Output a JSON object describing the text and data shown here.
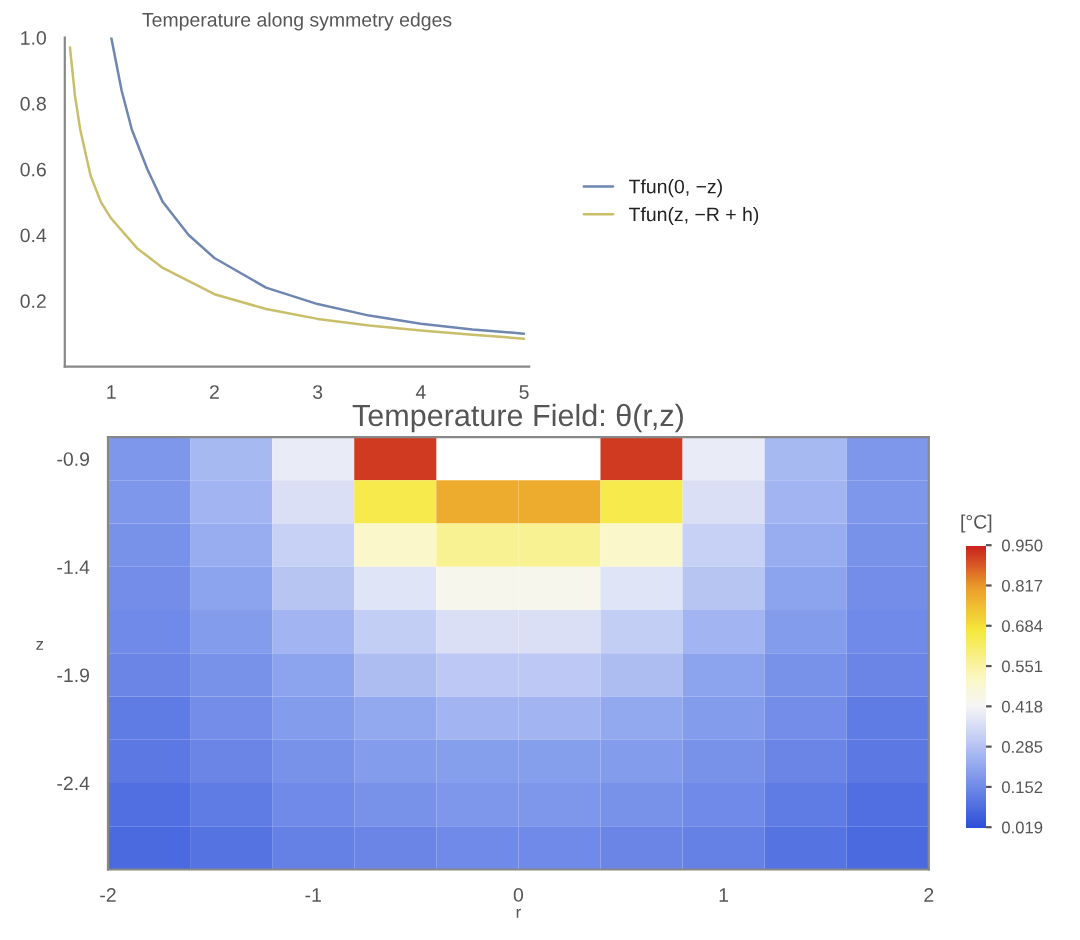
{
  "chart_data": [
    {
      "type": "line",
      "title": "Temperature along symmetry edges",
      "series": [
        {
          "name": "Tfun(0, −z)",
          "color": "#6f86b0",
          "x": [
            1.0,
            1.1,
            1.2,
            1.35,
            1.5,
            1.75,
            2.0,
            2.5,
            3.0,
            3.5,
            4.0,
            4.5,
            5.0
          ],
          "values": [
            1.0,
            0.84,
            0.72,
            0.6,
            0.5,
            0.4,
            0.33,
            0.24,
            0.19,
            0.155,
            0.13,
            0.113,
            0.1
          ]
        },
        {
          "name": "Tfun(z, −R + h)",
          "color": "#c9bf6a",
          "x": [
            0.6,
            0.65,
            0.7,
            0.8,
            0.9,
            1.0,
            1.25,
            1.5,
            2.0,
            2.5,
            3.0,
            3.5,
            4.0,
            4.5,
            5.0
          ],
          "values": [
            0.97,
            0.82,
            0.72,
            0.58,
            0.5,
            0.45,
            0.36,
            0.3,
            0.22,
            0.175,
            0.145,
            0.125,
            0.11,
            0.097,
            0.085
          ]
        }
      ],
      "xlim": [
        0.55,
        5.05
      ],
      "ylim": [
        0,
        1.0
      ],
      "xticks": [
        1,
        2,
        3,
        4,
        5
      ],
      "yticks": [
        0.2,
        0.4,
        0.6,
        0.8,
        {
          "value": 1.0,
          "label": "1.0"
        }
      ],
      "grid": false,
      "legend": "right"
    },
    {
      "type": "heatmap",
      "title": "Temperature Field: θ(r,z)",
      "xlabel": "r",
      "ylabel": "z",
      "clabel": "[°C]",
      "x": [
        -1.8,
        -1.4,
        -1.0,
        -0.6,
        -0.2,
        0.2,
        0.6,
        1.0,
        1.4,
        1.8
      ],
      "y": [
        -0.9,
        -1.1,
        -1.3,
        -1.5,
        -1.7,
        -1.9,
        -2.1,
        -2.3,
        -2.5,
        -2.7
      ],
      "cells": [
        [
          0.18,
          0.26,
          0.39,
          0.92,
          null,
          null,
          0.92,
          0.39,
          0.26,
          0.18
        ],
        [
          0.18,
          0.25,
          0.36,
          0.65,
          0.78,
          0.78,
          0.65,
          0.36,
          0.25,
          0.18
        ],
        [
          0.17,
          0.23,
          0.32,
          0.5,
          0.57,
          0.57,
          0.5,
          0.32,
          0.23,
          0.17
        ],
        [
          0.16,
          0.21,
          0.29,
          0.37,
          0.44,
          0.44,
          0.37,
          0.29,
          0.21,
          0.16
        ],
        [
          0.15,
          0.19,
          0.25,
          0.31,
          0.36,
          0.36,
          0.31,
          0.25,
          0.19,
          0.15
        ],
        [
          0.14,
          0.17,
          0.21,
          0.27,
          0.3,
          0.3,
          0.27,
          0.21,
          0.17,
          0.14
        ],
        [
          0.12,
          0.16,
          0.19,
          0.22,
          0.25,
          0.25,
          0.22,
          0.19,
          0.16,
          0.12
        ],
        [
          0.11,
          0.14,
          0.17,
          0.19,
          0.2,
          0.2,
          0.19,
          0.17,
          0.14,
          0.11
        ],
        [
          0.09,
          0.12,
          0.15,
          0.17,
          0.18,
          0.18,
          0.17,
          0.15,
          0.12,
          0.09
        ],
        [
          0.08,
          0.1,
          0.13,
          0.14,
          0.15,
          0.15,
          0.14,
          0.13,
          0.1,
          0.08
        ]
      ],
      "xlim": [
        -2,
        2
      ],
      "ylim": [
        -2.8,
        -0.8
      ],
      "xticks": [
        -2,
        -1,
        0,
        1,
        2
      ],
      "yticks": [
        -0.9,
        -1.4,
        -1.9,
        -2.4
      ],
      "clim": [
        0.019,
        0.95
      ],
      "cticks": [
        {
          "value": 0.019,
          "label": "0.019"
        },
        {
          "value": 0.152,
          "label": "0.152"
        },
        {
          "value": 0.285,
          "label": "0.285"
        },
        {
          "value": 0.418,
          "label": "0.418"
        },
        {
          "value": 0.551,
          "label": "0.551"
        },
        {
          "value": 0.684,
          "label": "0.684"
        },
        {
          "value": 0.817,
          "label": "0.817"
        },
        {
          "value": 0.95,
          "label": "0.950"
        }
      ]
    }
  ]
}
